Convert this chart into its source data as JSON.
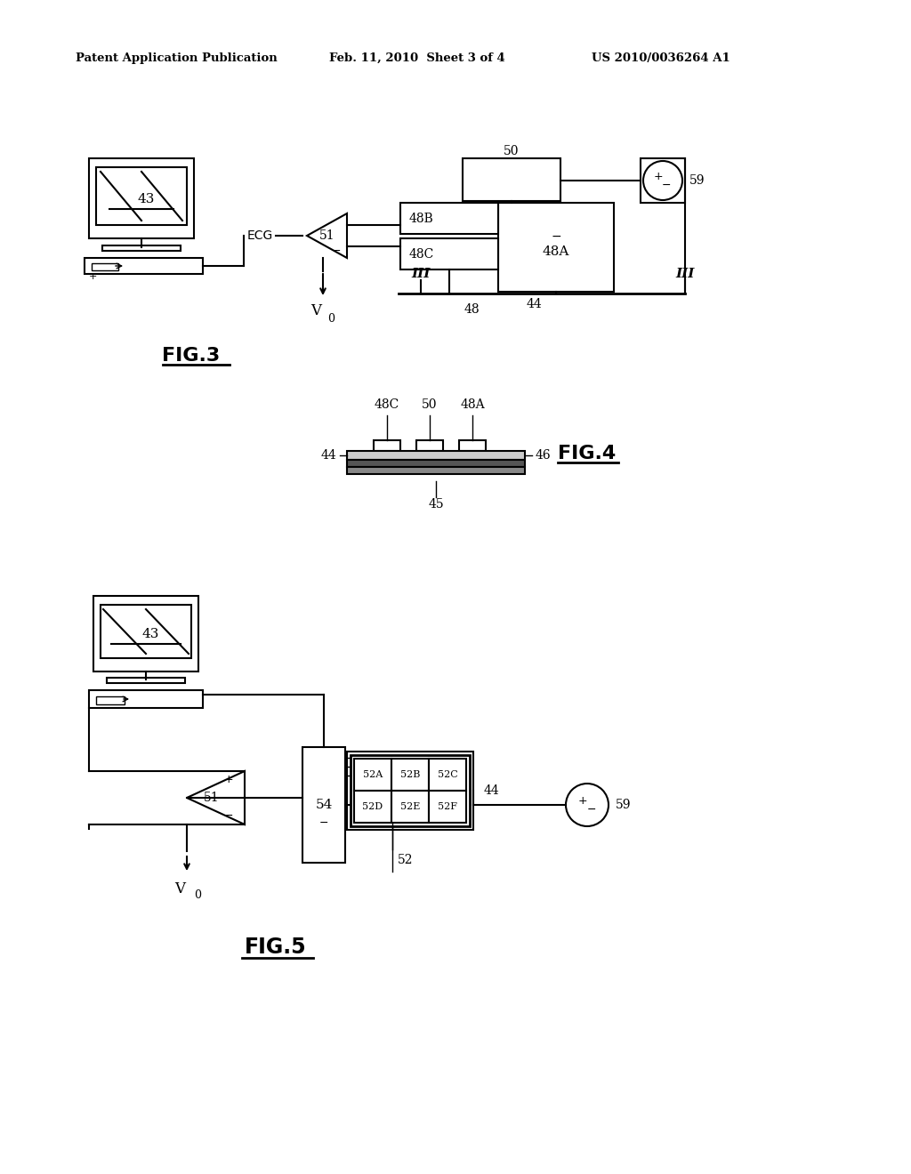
{
  "bg_color": "#ffffff",
  "header_left": "Patent Application Publication",
  "header_mid": "Feb. 11, 2010  Sheet 3 of 4",
  "header_right": "US 2010/0036264 A1"
}
